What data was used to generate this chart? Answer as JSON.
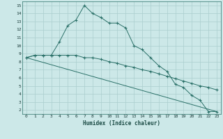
{
  "xlabel": "Humidex (Indice chaleur)",
  "bg_color": "#cce8e8",
  "grid_color": "#aacece",
  "line_color": "#2a7068",
  "xlim": [
    -0.5,
    23.5
  ],
  "ylim": [
    1.5,
    15.5
  ],
  "xticks": [
    0,
    1,
    2,
    3,
    4,
    5,
    6,
    7,
    8,
    9,
    10,
    11,
    12,
    13,
    14,
    15,
    16,
    17,
    18,
    19,
    20,
    21,
    22,
    23
  ],
  "yticks": [
    2,
    3,
    4,
    5,
    6,
    7,
    8,
    9,
    10,
    11,
    12,
    13,
    14,
    15
  ],
  "line1_x": [
    0,
    1,
    2,
    3,
    4,
    5,
    6,
    7,
    8,
    9,
    10,
    11,
    12,
    13,
    14,
    15,
    16,
    17,
    18,
    19,
    20,
    21,
    22,
    23
  ],
  "line1_y": [
    8.5,
    8.8,
    8.8,
    8.8,
    10.5,
    12.5,
    13.2,
    15.0,
    14.0,
    13.5,
    12.8,
    12.8,
    12.2,
    10.0,
    9.5,
    8.5,
    7.5,
    6.8,
    5.2,
    4.8,
    3.8,
    3.2,
    1.8,
    1.8
  ],
  "line2_x": [
    0,
    1,
    2,
    3,
    4,
    5,
    6,
    7,
    8,
    9,
    10,
    11,
    12,
    13,
    14,
    15,
    16,
    17,
    18,
    19,
    20,
    21,
    22,
    23
  ],
  "line2_y": [
    8.5,
    8.8,
    8.8,
    8.8,
    8.8,
    8.8,
    8.8,
    8.5,
    8.5,
    8.3,
    8.0,
    7.8,
    7.5,
    7.3,
    7.0,
    6.8,
    6.5,
    6.2,
    5.9,
    5.6,
    5.3,
    5.0,
    4.8,
    4.5
  ],
  "line3_x": [
    0,
    23
  ],
  "line3_y": [
    8.5,
    1.8
  ]
}
